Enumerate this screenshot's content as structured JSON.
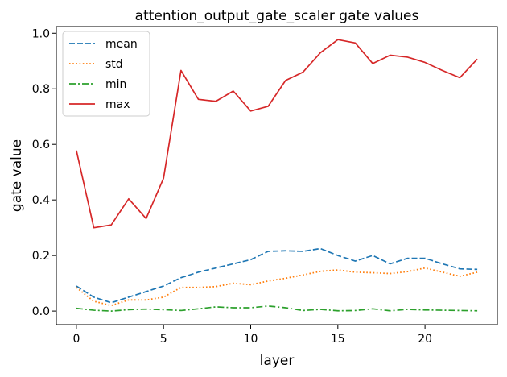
{
  "chart_data": {
    "type": "line",
    "title": "attention_output_gate_scaler gate values",
    "xlabel": "layer",
    "ylabel": "gate value",
    "xlim": [
      -1.15,
      24.15
    ],
    "ylim": [
      -0.049,
      1.024
    ],
    "xticks": [
      0,
      5,
      10,
      15,
      20
    ],
    "yticks": [
      0.0,
      0.2,
      0.4,
      0.6,
      0.8,
      1.0
    ],
    "xtick_labels": [
      "0",
      "5",
      "10",
      "15",
      "20"
    ],
    "ytick_labels": [
      "0.0",
      "0.2",
      "0.4",
      "0.6",
      "0.8",
      "1.0"
    ],
    "grid": false,
    "legend_position": "top-left",
    "x": [
      0,
      1,
      2,
      3,
      4,
      5,
      6,
      7,
      8,
      9,
      10,
      11,
      12,
      13,
      14,
      15,
      16,
      17,
      18,
      19,
      20,
      21,
      22,
      23
    ],
    "series": [
      {
        "name": "mean",
        "color": "#1f77b4",
        "dash": "dashed",
        "values": [
          0.09,
          0.05,
          0.03,
          0.05,
          0.07,
          0.09,
          0.12,
          0.14,
          0.155,
          0.17,
          0.185,
          0.215,
          0.217,
          0.215,
          0.225,
          0.2,
          0.18,
          0.2,
          0.17,
          0.19,
          0.19,
          0.17,
          0.152,
          0.15
        ]
      },
      {
        "name": "std",
        "color": "#ff7f0e",
        "dash": "dotted",
        "values": [
          0.085,
          0.035,
          0.02,
          0.04,
          0.04,
          0.05,
          0.085,
          0.085,
          0.088,
          0.1,
          0.095,
          0.108,
          0.118,
          0.13,
          0.143,
          0.148,
          0.14,
          0.138,
          0.135,
          0.142,
          0.155,
          0.14,
          0.125,
          0.14
        ]
      },
      {
        "name": "min",
        "color": "#2ca02c",
        "dash": "dashdot",
        "values": [
          0.01,
          0.003,
          0.0,
          0.005,
          0.007,
          0.005,
          0.002,
          0.008,
          0.015,
          0.012,
          0.012,
          0.018,
          0.012,
          0.002,
          0.006,
          0.001,
          0.002,
          0.008,
          0.001,
          0.006,
          0.004,
          0.003,
          0.002,
          0.001
        ]
      },
      {
        "name": "max",
        "color": "#d62728",
        "dash": "solid",
        "values": [
          0.578,
          0.3,
          0.31,
          0.404,
          0.333,
          0.478,
          0.866,
          0.762,
          0.755,
          0.792,
          0.72,
          0.737,
          0.83,
          0.86,
          0.93,
          0.977,
          0.965,
          0.891,
          0.921,
          0.914,
          0.895,
          0.866,
          0.84,
          0.907
        ]
      }
    ]
  }
}
